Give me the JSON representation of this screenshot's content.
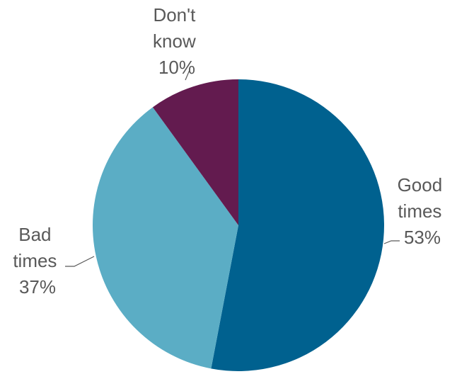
{
  "chart_data": {
    "type": "pie",
    "title": "",
    "slices": [
      {
        "label_lines": [
          "Good",
          "times"
        ],
        "pct_label": "53%",
        "value": 53,
        "color": "#00618f"
      },
      {
        "label_lines": [
          "Bad",
          "times"
        ],
        "pct_label": "37%",
        "value": 37,
        "color": "#5badc5"
      },
      {
        "label_lines": [
          "Don't",
          "know"
        ],
        "pct_label": "10%",
        "value": 10,
        "color": "#631b4f"
      }
    ],
    "start_angle": "12 o'clock",
    "direction": "clockwise",
    "legend": "none",
    "label_color": "#595959"
  }
}
